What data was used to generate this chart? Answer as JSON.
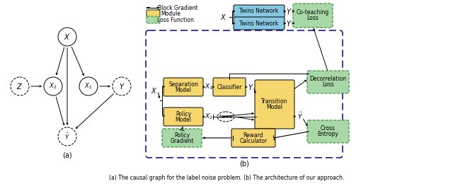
{
  "fig_width": 6.4,
  "fig_height": 2.63,
  "dpi": 100,
  "bg_color": "#ffffff",
  "caption": "(a) The causal graph for the label noise problem. (b) The architecture of our approach.",
  "part_a_label": "(a)",
  "part_b_label": "(b)",
  "legend_items": [
    "Block Gradient",
    "Module",
    "Loss Function"
  ],
  "yellow_color": "#f5d76e",
  "blue_color": "#85c8e0",
  "green_color": "#a8d8a8",
  "dark_blue": "#1a1a8c"
}
